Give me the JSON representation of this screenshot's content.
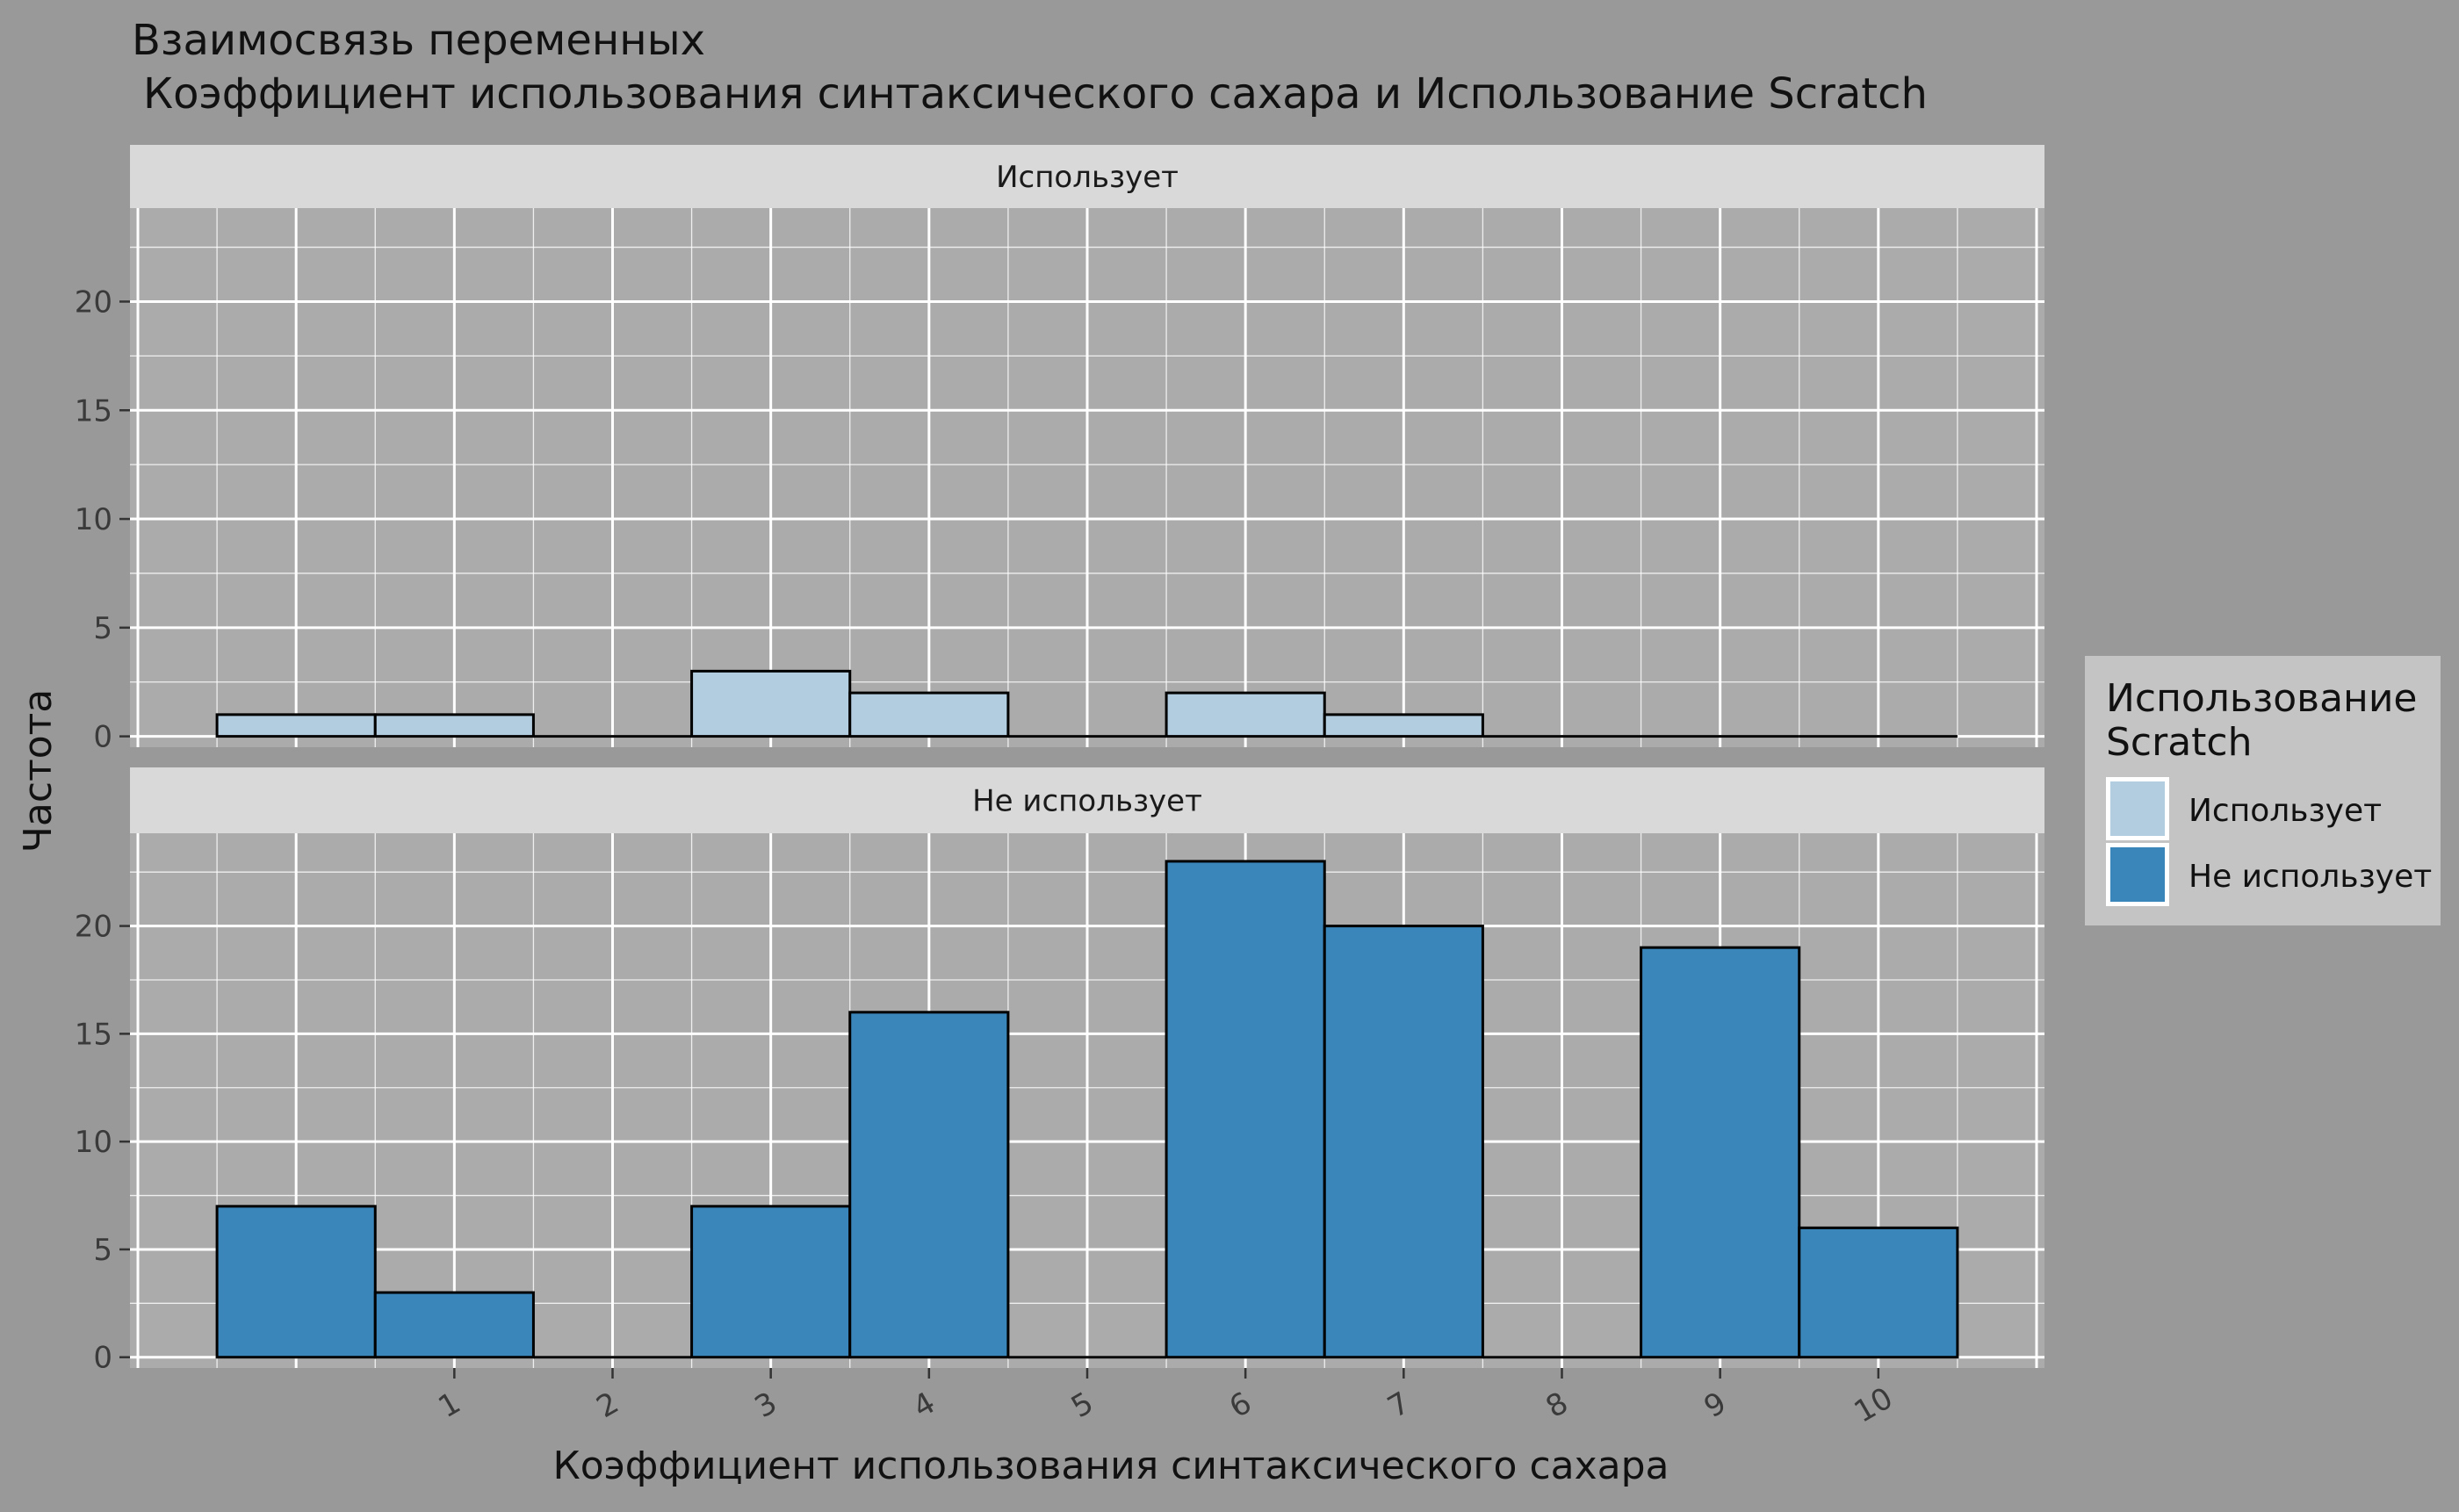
{
  "chart_data": {
    "type": "bar",
    "title": "Взаимосвязь переменных",
    "subtitle": "Коэффициент использования синтаксического сахара и Использование Scratch",
    "xlabel": "Коэффициент использования синтаксического сахара",
    "ylabel": "Частота",
    "x_ticks": [
      "1",
      "2",
      "3",
      "4",
      "5",
      "6",
      "7",
      "8",
      "9",
      "10"
    ],
    "y_ticks": [
      0,
      5,
      10,
      15,
      20
    ],
    "ylim": [
      -0.5,
      24.3
    ],
    "xlim": [
      -1.05,
      11.05
    ],
    "bin_width": 1,
    "bin_centers": [
      0,
      1,
      2,
      3,
      4,
      5,
      6,
      7,
      8,
      9,
      10
    ],
    "legend": {
      "title": "Использование Scratch",
      "position": "right",
      "entries": [
        {
          "label": "Использует",
          "color": "#b3cde0"
        },
        {
          "label": "Не использует",
          "color": "#3a85ba"
        }
      ]
    },
    "panels": [
      {
        "strip": "Использует",
        "color": "#b3cde0",
        "values": [
          1,
          1,
          0,
          3,
          2,
          0,
          2,
          1,
          0,
          0,
          0
        ]
      },
      {
        "strip": "Не использует",
        "color": "#3a85ba",
        "values": [
          7,
          3,
          0,
          7,
          16,
          0,
          23,
          20,
          0,
          19,
          6
        ]
      }
    ],
    "grid": true,
    "colors": {
      "background": "#999999",
      "panel": "#ababab",
      "strip": "#d9d9d9",
      "legend_box": "#c4c4c4",
      "grid": "#ffffff",
      "bar_outline": "#000000"
    }
  }
}
